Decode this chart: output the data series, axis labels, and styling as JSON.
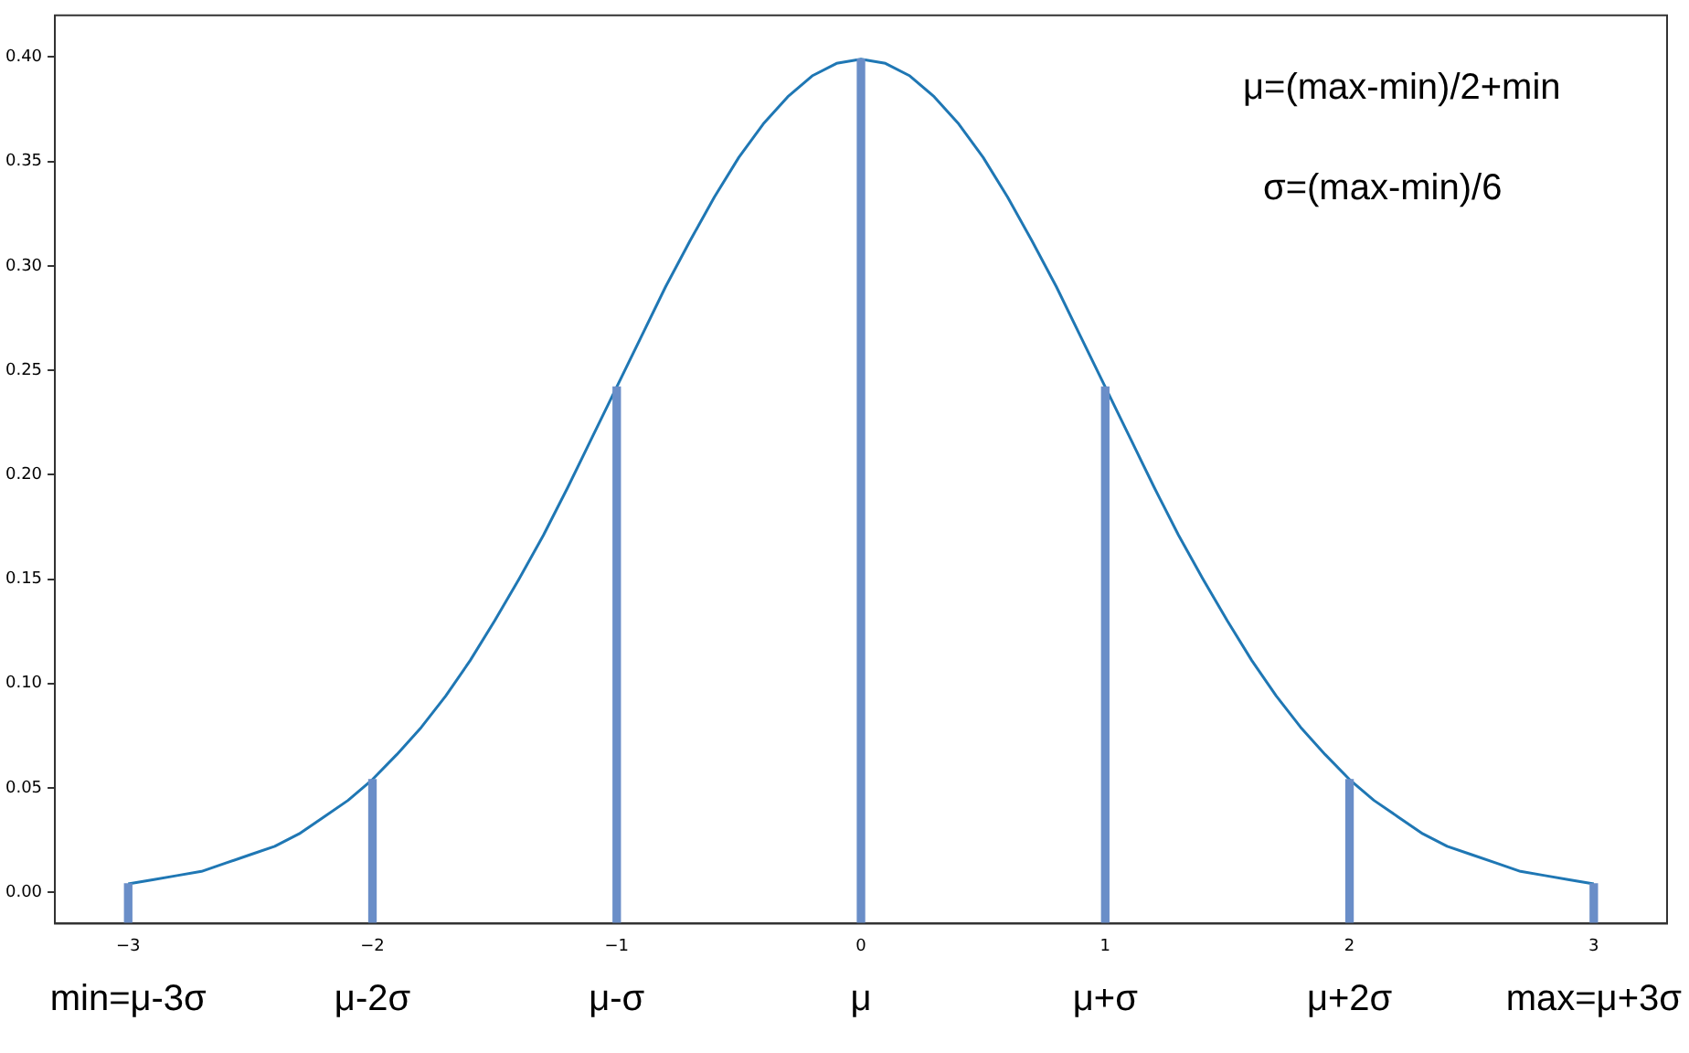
{
  "chart_data": {
    "type": "line",
    "xlim": [
      -3.3,
      3.3
    ],
    "ylim": [
      -0.015,
      0.42
    ],
    "xticks": [
      {
        "value": -3,
        "label": "−3"
      },
      {
        "value": -2,
        "label": "−2"
      },
      {
        "value": -1,
        "label": "−1"
      },
      0,
      1,
      2,
      3
    ],
    "yticks": [
      {
        "value": 0,
        "label": "0.00"
      },
      {
        "value": 0.05,
        "label": "0.05"
      },
      {
        "value": 0.1,
        "label": "0.10"
      },
      {
        "value": 0.15,
        "label": "0.15"
      },
      {
        "value": 0.2,
        "label": "0.20"
      },
      {
        "value": 0.25,
        "label": "0.25"
      },
      {
        "value": 0.3,
        "label": "0.30"
      },
      {
        "value": 0.35,
        "label": "0.35"
      },
      {
        "value": 0.4,
        "label": "0.40"
      }
    ],
    "grid": false,
    "legend": false,
    "series": [
      {
        "color": "#1f77b4",
        "x": [
          -3,
          -2.9,
          -2.8,
          -2.7,
          -2.6,
          -2.5,
          -2.4,
          -2.3,
          -2.2,
          -2.1,
          -2,
          -1.9,
          -1.8,
          -1.7,
          -1.6,
          -1.5,
          -1.4,
          -1.3,
          -1.2,
          -1.1,
          -1,
          -0.9,
          -0.8,
          -0.7,
          -0.6,
          -0.5,
          -0.4,
          -0.3,
          -0.2,
          -0.1,
          0,
          0.1,
          0.2,
          0.3,
          0.4,
          0.5,
          0.6,
          0.7,
          0.8,
          0.9,
          1,
          1.1,
          1.2,
          1.3,
          1.4,
          1.5,
          1.6,
          1.7,
          1.8,
          1.9,
          2,
          2.1,
          2.2,
          2.3,
          2.4,
          2.5,
          2.6,
          2.7,
          2.8,
          2.9,
          3
        ],
        "values": [
          0.004,
          0.006,
          0.008,
          0.01,
          0.014,
          0.018,
          0.022,
          0.028,
          0.036,
          0.044,
          0.054,
          0.066,
          0.079,
          0.094,
          0.111,
          0.13,
          0.15,
          0.171,
          0.194,
          0.218,
          0.242,
          0.266,
          0.29,
          0.312,
          0.333,
          0.352,
          0.368,
          0.381,
          0.391,
          0.397,
          0.399,
          0.397,
          0.391,
          0.381,
          0.368,
          0.352,
          0.333,
          0.312,
          0.29,
          0.266,
          0.242,
          0.218,
          0.194,
          0.171,
          0.15,
          0.13,
          0.111,
          0.094,
          0.079,
          0.066,
          0.054,
          0.044,
          0.036,
          0.028,
          0.022,
          0.018,
          0.014,
          0.01,
          0.008,
          0.006,
          0.004
        ]
      },
      {
        "type": "bar",
        "color": "#6a8ec8",
        "x": [
          -3,
          -2,
          -1,
          0,
          1,
          2,
          3
        ],
        "base": [
          -0.015,
          -0.015,
          -0.015,
          -0.015,
          -0.015,
          -0.015,
          -0.015
        ],
        "values": [
          0.019,
          0.069,
          0.257,
          0.414,
          0.257,
          0.069,
          0.019
        ]
      }
    ],
    "annotations": [
      "μ=(max-min)/2+min",
      "σ=(max-min)/6",
      "min=μ-3σ",
      "μ-2σ",
      "μ-σ",
      "μ",
      "μ+σ",
      "μ+2σ",
      "max=μ+3σ"
    ]
  }
}
